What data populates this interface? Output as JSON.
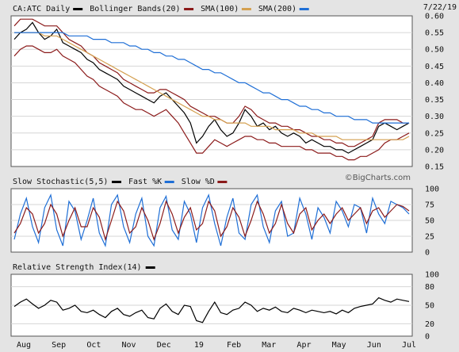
{
  "chart_data": {
    "type": "line",
    "date": "7/22/19",
    "watermark": "©BigCharts.com",
    "xlabels": [
      "Aug",
      "Sep",
      "Oct",
      "Nov",
      "Dec",
      "19",
      "Feb",
      "Mar",
      "Apr",
      "May",
      "Jun",
      "Jul"
    ],
    "price": {
      "legend": [
        {
          "label": "CA:ATC Daily",
          "color": "#000000"
        },
        {
          "label": "Bollinger Bands(20)",
          "color": "#8b1a1a"
        },
        {
          "label": "SMA(100)",
          "color": "#d4a050"
        },
        {
          "label": "SMA(200)",
          "color": "#1f6fd6"
        }
      ],
      "ylim": [
        0.15,
        0.6
      ],
      "yticks": [
        "0.60",
        "0.55",
        "0.50",
        "0.45",
        "0.40",
        "0.35",
        "0.30",
        "0.25",
        "0.20",
        "0.15"
      ],
      "series": [
        {
          "name": "CA:ATC Daily",
          "color": "#000000",
          "values": [
            0.53,
            0.55,
            0.56,
            0.58,
            0.55,
            0.53,
            0.54,
            0.56,
            0.52,
            0.51,
            0.5,
            0.49,
            0.47,
            0.46,
            0.44,
            0.43,
            0.42,
            0.41,
            0.39,
            0.38,
            0.37,
            0.36,
            0.35,
            0.34,
            0.36,
            0.37,
            0.35,
            0.33,
            0.31,
            0.28,
            0.22,
            0.24,
            0.27,
            0.29,
            0.26,
            0.24,
            0.25,
            0.28,
            0.32,
            0.3,
            0.27,
            0.28,
            0.26,
            0.27,
            0.25,
            0.24,
            0.25,
            0.24,
            0.22,
            0.23,
            0.22,
            0.21,
            0.21,
            0.2,
            0.2,
            0.19,
            0.2,
            0.21,
            0.22,
            0.23,
            0.27,
            0.28,
            0.27,
            0.26,
            0.27,
            0.28
          ]
        },
        {
          "name": "Bollinger upper",
          "color": "#8b1a1a",
          "values": [
            0.57,
            0.59,
            0.59,
            0.59,
            0.58,
            0.57,
            0.57,
            0.57,
            0.55,
            0.53,
            0.52,
            0.51,
            0.49,
            0.48,
            0.46,
            0.45,
            0.44,
            0.43,
            0.41,
            0.4,
            0.39,
            0.38,
            0.37,
            0.37,
            0.38,
            0.38,
            0.37,
            0.36,
            0.35,
            0.33,
            0.32,
            0.31,
            0.3,
            0.3,
            0.29,
            0.28,
            0.28,
            0.3,
            0.33,
            0.32,
            0.3,
            0.29,
            0.28,
            0.28,
            0.27,
            0.27,
            0.26,
            0.26,
            0.25,
            0.24,
            0.24,
            0.23,
            0.23,
            0.22,
            0.22,
            0.21,
            0.21,
            0.22,
            0.23,
            0.24,
            0.28,
            0.29,
            0.29,
            0.29,
            0.28,
            0.28
          ]
        },
        {
          "name": "Bollinger lower",
          "color": "#8b1a1a",
          "values": [
            0.48,
            0.5,
            0.51,
            0.51,
            0.5,
            0.49,
            0.49,
            0.5,
            0.48,
            0.47,
            0.46,
            0.44,
            0.42,
            0.41,
            0.39,
            0.38,
            0.37,
            0.36,
            0.34,
            0.33,
            0.32,
            0.32,
            0.31,
            0.3,
            0.31,
            0.32,
            0.3,
            0.28,
            0.25,
            0.22,
            0.19,
            0.19,
            0.21,
            0.23,
            0.22,
            0.21,
            0.22,
            0.23,
            0.24,
            0.24,
            0.23,
            0.23,
            0.22,
            0.22,
            0.21,
            0.21,
            0.21,
            0.21,
            0.2,
            0.2,
            0.19,
            0.19,
            0.19,
            0.18,
            0.18,
            0.17,
            0.17,
            0.18,
            0.18,
            0.19,
            0.2,
            0.22,
            0.23,
            0.23,
            0.24,
            0.25
          ]
        },
        {
          "name": "SMA(100)",
          "color": "#d4a050",
          "values": [
            0.55,
            0.55,
            0.55,
            0.55,
            0.55,
            0.54,
            0.54,
            0.54,
            0.53,
            0.52,
            0.51,
            0.5,
            0.49,
            0.48,
            0.47,
            0.46,
            0.45,
            0.44,
            0.43,
            0.42,
            0.41,
            0.4,
            0.39,
            0.38,
            0.37,
            0.36,
            0.35,
            0.34,
            0.33,
            0.32,
            0.31,
            0.3,
            0.3,
            0.29,
            0.29,
            0.28,
            0.28,
            0.28,
            0.28,
            0.27,
            0.27,
            0.27,
            0.27,
            0.26,
            0.26,
            0.26,
            0.26,
            0.25,
            0.25,
            0.25,
            0.24,
            0.24,
            0.24,
            0.24,
            0.23,
            0.23,
            0.23,
            0.23,
            0.23,
            0.23,
            0.23,
            0.23,
            0.23,
            0.23,
            0.23,
            0.24
          ]
        },
        {
          "name": "SMA(200)",
          "color": "#1f6fd6",
          "values": [
            0.55,
            0.55,
            0.55,
            0.55,
            0.55,
            0.55,
            0.55,
            0.55,
            0.55,
            0.54,
            0.54,
            0.54,
            0.54,
            0.53,
            0.53,
            0.53,
            0.52,
            0.52,
            0.52,
            0.51,
            0.51,
            0.5,
            0.5,
            0.49,
            0.49,
            0.48,
            0.48,
            0.47,
            0.47,
            0.46,
            0.45,
            0.44,
            0.44,
            0.43,
            0.43,
            0.42,
            0.41,
            0.4,
            0.4,
            0.39,
            0.38,
            0.37,
            0.37,
            0.36,
            0.35,
            0.35,
            0.34,
            0.33,
            0.33,
            0.32,
            0.32,
            0.31,
            0.31,
            0.3,
            0.3,
            0.3,
            0.29,
            0.29,
            0.29,
            0.28,
            0.28,
            0.28,
            0.28,
            0.28,
            0.28,
            0.28
          ]
        }
      ]
    },
    "stochastic": {
      "legend": [
        {
          "label": "Slow Stochastic(5,5)",
          "color": "#000000"
        },
        {
          "label": "Fast %K",
          "color": "#1f6fd6"
        },
        {
          "label": "Slow %D",
          "color": "#8b1a1a"
        }
      ],
      "ylim": [
        0,
        100
      ],
      "yticks": [
        "100",
        "75",
        "50",
        "25",
        "0"
      ],
      "series": [
        {
          "name": "Fast %K",
          "color": "#1f6fd6",
          "values": [
            20,
            60,
            85,
            40,
            15,
            70,
            90,
            35,
            10,
            80,
            65,
            20,
            50,
            85,
            30,
            10,
            75,
            90,
            40,
            15,
            60,
            85,
            25,
            10,
            70,
            88,
            35,
            20,
            80,
            60,
            15,
            70,
            90,
            45,
            10,
            55,
            85,
            30,
            20,
            75,
            90,
            40,
            15,
            65,
            80,
            25,
            30,
            85,
            60,
            20,
            70,
            55,
            30,
            80,
            65,
            40,
            75,
            70,
            30,
            85,
            60,
            45,
            80,
            75,
            70,
            60
          ]
        },
        {
          "name": "Slow %D",
          "color": "#8b1a1a",
          "values": [
            30,
            45,
            70,
            60,
            30,
            45,
            75,
            60,
            25,
            50,
            70,
            40,
            40,
            70,
            55,
            20,
            50,
            80,
            65,
            30,
            40,
            70,
            50,
            20,
            45,
            80,
            60,
            30,
            55,
            70,
            35,
            45,
            80,
            65,
            25,
            40,
            70,
            55,
            25,
            50,
            80,
            60,
            30,
            45,
            75,
            45,
            30,
            60,
            70,
            35,
            50,
            60,
            45,
            60,
            70,
            50,
            60,
            70,
            45,
            65,
            70,
            55,
            65,
            75,
            72,
            65
          ]
        }
      ]
    },
    "rsi": {
      "legend": [
        {
          "label": "Relative Strength Index(14)",
          "color": "#000000"
        }
      ],
      "ylim": [
        0,
        100
      ],
      "yticks": [
        "100",
        "80",
        "50",
        "20",
        "0"
      ],
      "series": [
        {
          "name": "Relative Strength Index(14)",
          "color": "#000000",
          "values": [
            48,
            55,
            60,
            52,
            45,
            50,
            58,
            55,
            42,
            45,
            50,
            40,
            38,
            42,
            35,
            30,
            40,
            45,
            35,
            32,
            38,
            42,
            30,
            28,
            45,
            52,
            40,
            35,
            50,
            48,
            25,
            22,
            40,
            55,
            38,
            35,
            42,
            45,
            55,
            50,
            40,
            45,
            42,
            47,
            40,
            38,
            45,
            42,
            38,
            42,
            40,
            38,
            40,
            36,
            42,
            38,
            45,
            48,
            50,
            52,
            62,
            58,
            55,
            60,
            58,
            56
          ]
        }
      ]
    }
  }
}
